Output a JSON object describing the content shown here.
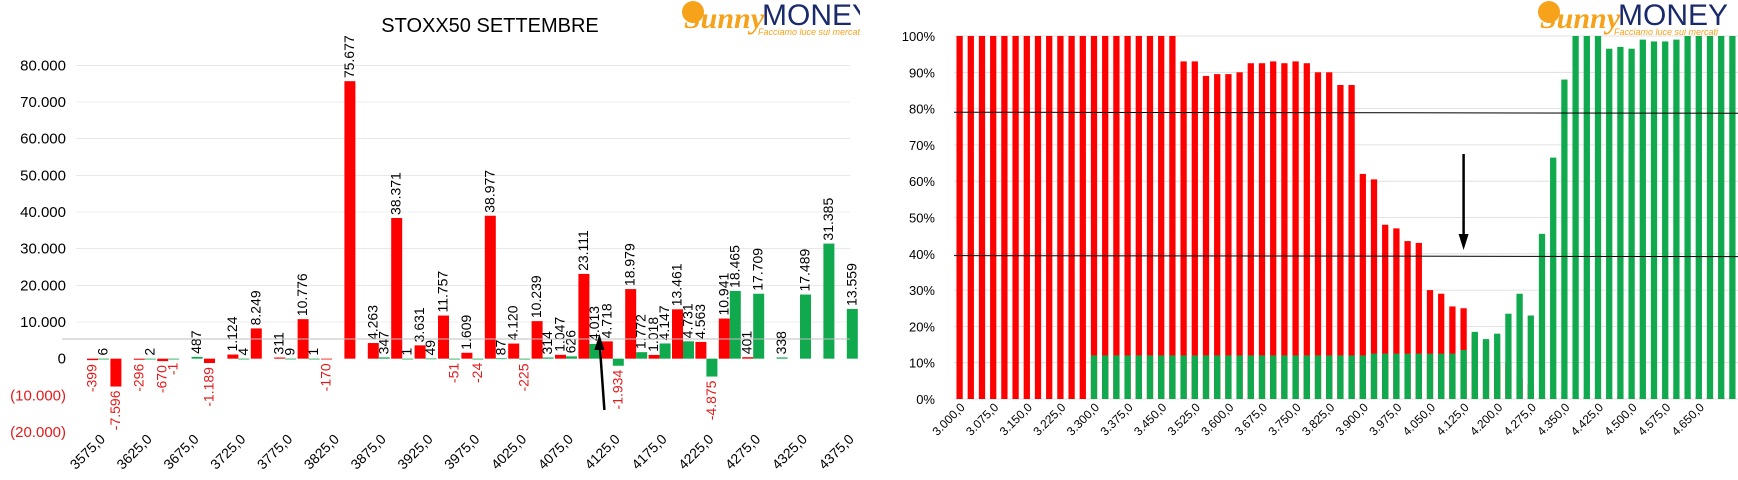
{
  "colors": {
    "red": "#ff0000",
    "green": "#10a94e",
    "neg_label": "#e31b1b",
    "grid": "#d9d9d9",
    "brand_orange": "#f7a21b",
    "brand_navy": "#1b2a6b"
  },
  "logo": {
    "text_sunny": "Sunny",
    "text_money": "MONEY",
    "tagline": "Facciamo luce sui mercati"
  },
  "chart_data": [
    {
      "type": "bar",
      "title": "STOXX50 SETTEMBRE",
      "xlabel": "",
      "ylabel": "",
      "ylim": [
        -20000,
        85000
      ],
      "y_ticks": [
        "80.000",
        "70.000",
        "60.000",
        "50.000",
        "40.000",
        "30.000",
        "20.000",
        "10.000",
        "0",
        "(10.000)",
        "(20.000)"
      ],
      "y_tick_values": [
        80000,
        70000,
        60000,
        50000,
        40000,
        30000,
        20000,
        10000,
        0,
        -10000,
        -20000
      ],
      "categories": [
        "3575,0",
        "3600,0",
        "3625,0",
        "3650,0",
        "3675,0",
        "3700,0",
        "3725,0",
        "3750,0",
        "3775,0",
        "3800,0",
        "3825,0",
        "3850,0",
        "3875,0",
        "3900,0",
        "3925,0",
        "3950,0",
        "3975,0",
        "4000,0",
        "4025,0",
        "4050,0",
        "4075,0",
        "4100,0",
        "4125,0",
        "4150,0",
        "4175,0",
        "4200,0",
        "4225,0",
        "4250,0",
        "4275,0",
        "4300,0",
        "4325,0",
        "4350,0",
        "4375,0"
      ],
      "x_tick_labels": [
        "3575,0",
        "3625,0",
        "3675,0",
        "3725,0",
        "3775,0",
        "3825,0",
        "3875,0",
        "3925,0",
        "3975,0",
        "4025,0",
        "4075,0",
        "4125,0",
        "4175,0",
        "4225,0",
        "4275,0",
        "4325,0",
        "4375,0"
      ],
      "series": [
        {
          "color": "red",
          "values": [
            -399,
            -7596,
            -296,
            -670,
            0,
            -1189,
            1124,
            8249,
            311,
            10776,
            -170,
            75677,
            4263,
            38371,
            3631,
            11757,
            1609,
            38977,
            4120,
            10239,
            1047,
            23111,
            4718,
            18979,
            1018,
            13461,
            4563,
            10941,
            401,
            0,
            0,
            0,
            0
          ],
          "labels": [
            "-399",
            "-7.596",
            "-296",
            "-670",
            "",
            "-1.189",
            "1.124",
            "8.249",
            "311",
            "10.776",
            "-170",
            "75.677",
            "4.263",
            "38.371",
            "3.631",
            "11.757",
            "1.609",
            "38.977",
            "4.120",
            "10.239",
            "1.047",
            "23.111",
            "4.718",
            "18.979",
            "1.018",
            "13.461",
            "4.563",
            "10.941",
            "401",
            "",
            "",
            "",
            ""
          ]
        },
        {
          "color": "green",
          "values": [
            6,
            0,
            2,
            -1,
            487,
            0,
            4,
            0,
            9,
            1,
            0,
            0,
            347,
            1,
            49,
            -51,
            -24,
            87,
            -225,
            314,
            626,
            4013,
            -1934,
            1772,
            4147,
            4731,
            -4875,
            18465,
            17709,
            338,
            17489,
            31385,
            13559
          ],
          "labels": [
            "6",
            "",
            "2",
            "-1",
            "487",
            "",
            "4",
            "",
            "9",
            "1",
            "",
            "",
            "347",
            "1",
            "49",
            "-51",
            "-24",
            "87",
            "-225",
            "314",
            "626",
            "4.013",
            "-1.934",
            "1.772",
            "4.147",
            "4.731",
            "-4.875",
            "18.465",
            "17.709",
            "338",
            "17.489",
            "31.385",
            "13.559"
          ]
        }
      ],
      "annotations": [
        {
          "type": "arrow",
          "direction": "up",
          "at_category": "4100,0"
        }
      ],
      "grid": true,
      "legend": "none"
    },
    {
      "type": "bar",
      "title": "",
      "xlabel": "",
      "ylabel": "",
      "ylim": [
        0,
        1
      ],
      "y_ticks": [
        "100%",
        "90%",
        "80%",
        "70%",
        "60%",
        "50%",
        "40%",
        "30%",
        "20%",
        "10%",
        "0%"
      ],
      "y_tick_values": [
        1,
        0.9,
        0.8,
        0.7,
        0.6,
        0.5,
        0.4,
        0.3,
        0.2,
        0.1,
        0
      ],
      "x_range": [
        3000,
        4725
      ],
      "x_step": 25,
      "x_tick_labels": [
        "3.000,0",
        "3.075,0",
        "3.150,0",
        "3.225,0",
        "3.300,0",
        "3.375,0",
        "3.450,0",
        "3.525,0",
        "3.600,0",
        "3.675,0",
        "3.750,0",
        "3.825,0",
        "3.900,0",
        "3.975,0",
        "4.050,0",
        "4.125,0",
        "4.200,0",
        "4.275,0",
        "4.350,0",
        "4.425,0",
        "4.500,0",
        "4.575,0",
        "4.650,0"
      ],
      "series": [
        {
          "color": "red",
          "values": [
            1.0,
            1.0,
            1.0,
            1.0,
            1.0,
            1.0,
            1.0,
            1.0,
            1.0,
            1.0,
            1.0,
            1.0,
            1.0,
            1.0,
            1.0,
            1.0,
            1.0,
            1.0,
            1.0,
            1.0,
            0.93,
            0.93,
            0.89,
            0.895,
            0.895,
            0.9,
            0.925,
            0.925,
            0.93,
            0.925,
            0.93,
            0.925,
            0.9,
            0.9,
            0.865,
            0.865,
            0.62,
            0.605,
            0.48,
            0.47,
            0.435,
            0.43,
            0.3,
            0.29,
            0.255,
            0.25,
            0.18,
            0.16,
            0.1,
            0.1,
            0.055,
            0.04,
            0.005,
            0.005,
            0.005,
            0.005,
            0.005,
            0.005,
            0.005,
            0.005,
            0.005,
            0.005,
            0.005,
            0.005,
            0.005,
            0.005,
            0.005,
            0.005,
            0.005,
            0.005
          ]
        },
        {
          "color": "green",
          "values": [
            0,
            0,
            0,
            0,
            0,
            0,
            0,
            0,
            0,
            0,
            0,
            0,
            0.12,
            0.12,
            0.12,
            0.12,
            0.12,
            0.12,
            0.12,
            0.12,
            0.12,
            0.12,
            0.12,
            0.12,
            0.12,
            0.12,
            0.12,
            0.12,
            0.12,
            0.12,
            0.12,
            0.12,
            0.12,
            0.12,
            0.12,
            0.12,
            0.12,
            0.125,
            0.125,
            0.125,
            0.125,
            0.125,
            0.125,
            0.125,
            0.125,
            0.135,
            0.185,
            0.165,
            0.18,
            0.235,
            0.29,
            0.23,
            0.455,
            0.665,
            0.88,
            1.0,
            1.0,
            1.0,
            0.965,
            0.97,
            0.965,
            0.99,
            0.985,
            0.985,
            0.99,
            1.0,
            1.0,
            1.0,
            1.0,
            1.0
          ]
        }
      ],
      "reference_lines": [
        0.79,
        0.395
      ],
      "annotations": [
        {
          "type": "arrow",
          "direction": "down",
          "x": 4125
        }
      ],
      "grid": true,
      "legend": "none"
    }
  ]
}
